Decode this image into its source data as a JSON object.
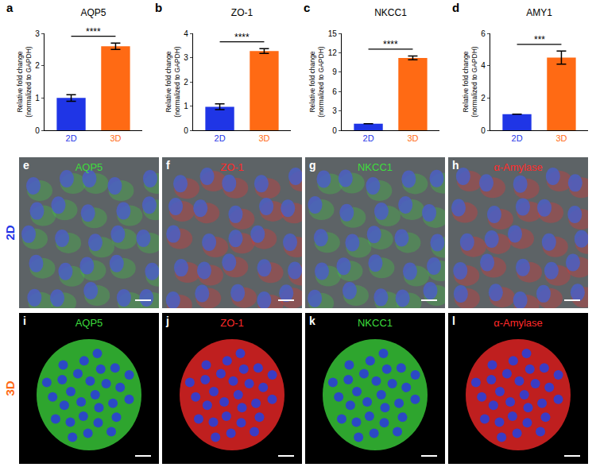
{
  "chart_data": [
    {
      "type": "bar",
      "panel": "a",
      "title": "AQP5",
      "categories": [
        "2D",
        "3D"
      ],
      "colors": [
        "#1f35e6",
        "#ff6a14"
      ],
      "values": [
        1.0,
        2.6
      ],
      "errors": [
        0.1,
        0.1
      ],
      "ylim": [
        0,
        3
      ],
      "yticks": [
        0,
        1,
        2,
        3
      ],
      "y_label": [
        "Relative fold change",
        "(normalized to GAPDH)"
      ],
      "significance": "****",
      "grid": false
    },
    {
      "type": "bar",
      "panel": "b",
      "title": "ZO-1",
      "categories": [
        "2D",
        "3D"
      ],
      "colors": [
        "#1f35e6",
        "#ff6a14"
      ],
      "values": [
        0.97,
        3.27
      ],
      "errors": [
        0.12,
        0.1
      ],
      "ylim": [
        0,
        4
      ],
      "yticks": [
        0,
        1,
        2,
        3,
        4
      ],
      "y_label": [
        "Relative fold change",
        "(normalized to GAPDH)"
      ],
      "significance": "****",
      "grid": false
    },
    {
      "type": "bar",
      "panel": "c",
      "title": "NKCC1",
      "categories": [
        "2D",
        "3D"
      ],
      "colors": [
        "#1f35e6",
        "#ff6a14"
      ],
      "values": [
        1.0,
        11.2
      ],
      "errors": [
        0.0,
        0.3
      ],
      "ylim": [
        0,
        15
      ],
      "yticks": [
        0,
        3,
        6,
        9,
        12,
        15
      ],
      "y_label": [
        "Relative fold change",
        "(normalized to GAPDH)"
      ],
      "significance": "****",
      "grid": false
    },
    {
      "type": "bar",
      "panel": "d",
      "title": "AMY1",
      "categories": [
        "2D",
        "3D"
      ],
      "colors": [
        "#1f35e6",
        "#ff6a14"
      ],
      "values": [
        1.0,
        4.5
      ],
      "errors": [
        0.0,
        0.4
      ],
      "ylim": [
        0,
        6
      ],
      "yticks": [
        0,
        2,
        4,
        6
      ],
      "y_label": [
        "Relative fold change",
        "(normalized to GAPDH)"
      ],
      "significance": "***",
      "grid": false
    }
  ],
  "image_rows": [
    {
      "label": "2D",
      "color": "#1f35e6",
      "panels": [
        {
          "letter": "e",
          "label": "AQP5",
          "color": "#3ddc3d"
        },
        {
          "letter": "f",
          "label": "ZO-1",
          "color": "#ff2a2a"
        },
        {
          "letter": "g",
          "label": "NKCC1",
          "color": "#3ddc3d"
        },
        {
          "letter": "h",
          "label": "α-Amylase",
          "color": "#ff2a2a"
        }
      ]
    },
    {
      "label": "3D",
      "color": "#ff6a14",
      "panels": [
        {
          "letter": "i",
          "label": "AQP5",
          "color": "#3ddc3d"
        },
        {
          "letter": "j",
          "label": "ZO-1",
          "color": "#ff2a2a"
        },
        {
          "letter": "k",
          "label": "NKCC1",
          "color": "#3ddc3d"
        },
        {
          "letter": "l",
          "label": "α-Amylase",
          "color": "#ff2a2a"
        }
      ]
    }
  ]
}
